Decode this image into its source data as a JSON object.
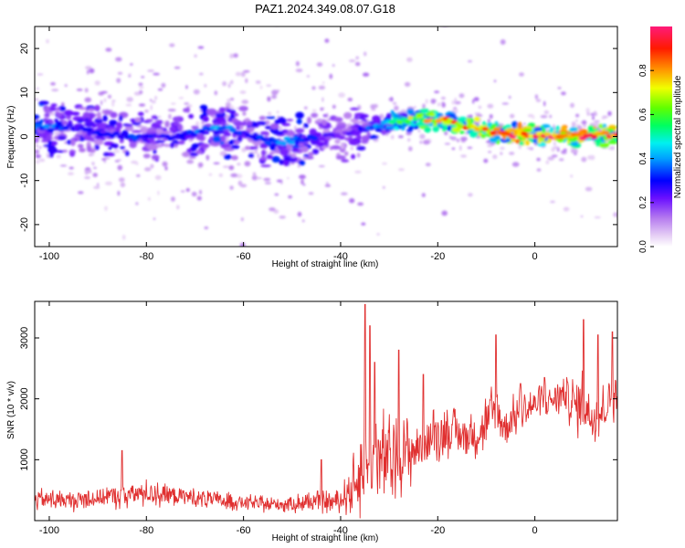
{
  "chart_data": [
    {
      "type": "heatmap",
      "title": "PAZ1.2024.349.08.07.G18",
      "xlabel": "Height of straight line (km)",
      "ylabel": "Frequency (Hz)",
      "xlim": [
        -103,
        17
      ],
      "ylim": [
        -25,
        25
      ],
      "xticks": [
        -100,
        -80,
        -60,
        -40,
        -20,
        0
      ],
      "yticks": [
        -20,
        -10,
        0,
        10,
        20
      ],
      "colorbar": {
        "label": "Normalized spectral amplitude",
        "range": [
          0,
          1
        ],
        "ticks": [
          0.0,
          0.2,
          0.4,
          0.6,
          0.8
        ],
        "tick_labels": [
          "0.0",
          "0.2",
          "0.4",
          "0.6",
          "0.8"
        ]
      },
      "ridge": {
        "x": [
          -102,
          -95,
          -90,
          -85,
          -80,
          -75,
          -70,
          -65,
          -60,
          -55,
          -50,
          -45,
          -40,
          -35,
          -30,
          -25,
          -20,
          -15,
          -10,
          -5,
          0,
          5,
          10,
          15,
          17
        ],
        "y": [
          2,
          2,
          1,
          0.5,
          0,
          0,
          1,
          2,
          1,
          -1,
          -1,
          0,
          0,
          1.5,
          3,
          4,
          4,
          2.5,
          1.5,
          0.5,
          0.5,
          0,
          0,
          0.5,
          0.5
        ],
        "amplitude": [
          0.4,
          0.3,
          0.3,
          0.35,
          0.3,
          0.3,
          0.35,
          0.4,
          0.3,
          0.35,
          0.4,
          0.3,
          0.2,
          0.3,
          0.55,
          0.7,
          0.8,
          0.85,
          0.9,
          0.95,
          0.95,
          0.95,
          0.95,
          0.9,
          0.9
        ]
      }
    },
    {
      "type": "line",
      "xlabel": "Height of straight line (km)",
      "ylabel": "SNR (10 * v/v)",
      "xlim": [
        -103,
        17
      ],
      "ylim": [
        0,
        3600
      ],
      "xticks": [
        -100,
        -80,
        -60,
        -40,
        -20,
        0
      ],
      "yticks": [
        1000,
        2000,
        3000
      ],
      "color": "#e03030",
      "envelope": {
        "x": [
          -103,
          -95,
          -90,
          -85,
          -80,
          -75,
          -70,
          -65,
          -60,
          -55,
          -50,
          -45,
          -40,
          -37,
          -35,
          -33,
          -30,
          -28,
          -25,
          -22,
          -20,
          -17,
          -15,
          -12,
          -10,
          -8,
          -6,
          -5,
          -3,
          0,
          2,
          4,
          6,
          8,
          10,
          12,
          14,
          16,
          17
        ],
        "mean": [
          350,
          330,
          380,
          420,
          450,
          420,
          380,
          330,
          300,
          260,
          280,
          300,
          320,
          600,
          900,
          1000,
          1000,
          1050,
          1150,
          1300,
          1450,
          1450,
          1400,
          1400,
          1600,
          1800,
          1500,
          1650,
          1800,
          1900,
          1950,
          2000,
          2100,
          1900,
          1900,
          1700,
          1800,
          2100,
          2100
        ],
        "spread": [
          200,
          200,
          220,
          250,
          250,
          230,
          200,
          180,
          150,
          140,
          180,
          200,
          200,
          600,
          900,
          1100,
          800,
          700,
          600,
          500,
          500,
          450,
          400,
          400,
          600,
          600,
          500,
          400,
          400,
          350,
          350,
          350,
          400,
          500,
          700,
          500,
          500,
          500,
          500
        ]
      },
      "peaks": [
        [
          -85,
          1150
        ],
        [
          -44,
          1000
        ],
        [
          -35,
          3550
        ],
        [
          -34,
          3200
        ],
        [
          -33,
          2600
        ],
        [
          -28,
          2800
        ],
        [
          -23,
          2400
        ],
        [
          -8,
          3050
        ],
        [
          -3,
          2250
        ],
        [
          2,
          2350
        ],
        [
          10,
          3300
        ],
        [
          13,
          3050
        ],
        [
          16,
          3100
        ]
      ]
    }
  ]
}
